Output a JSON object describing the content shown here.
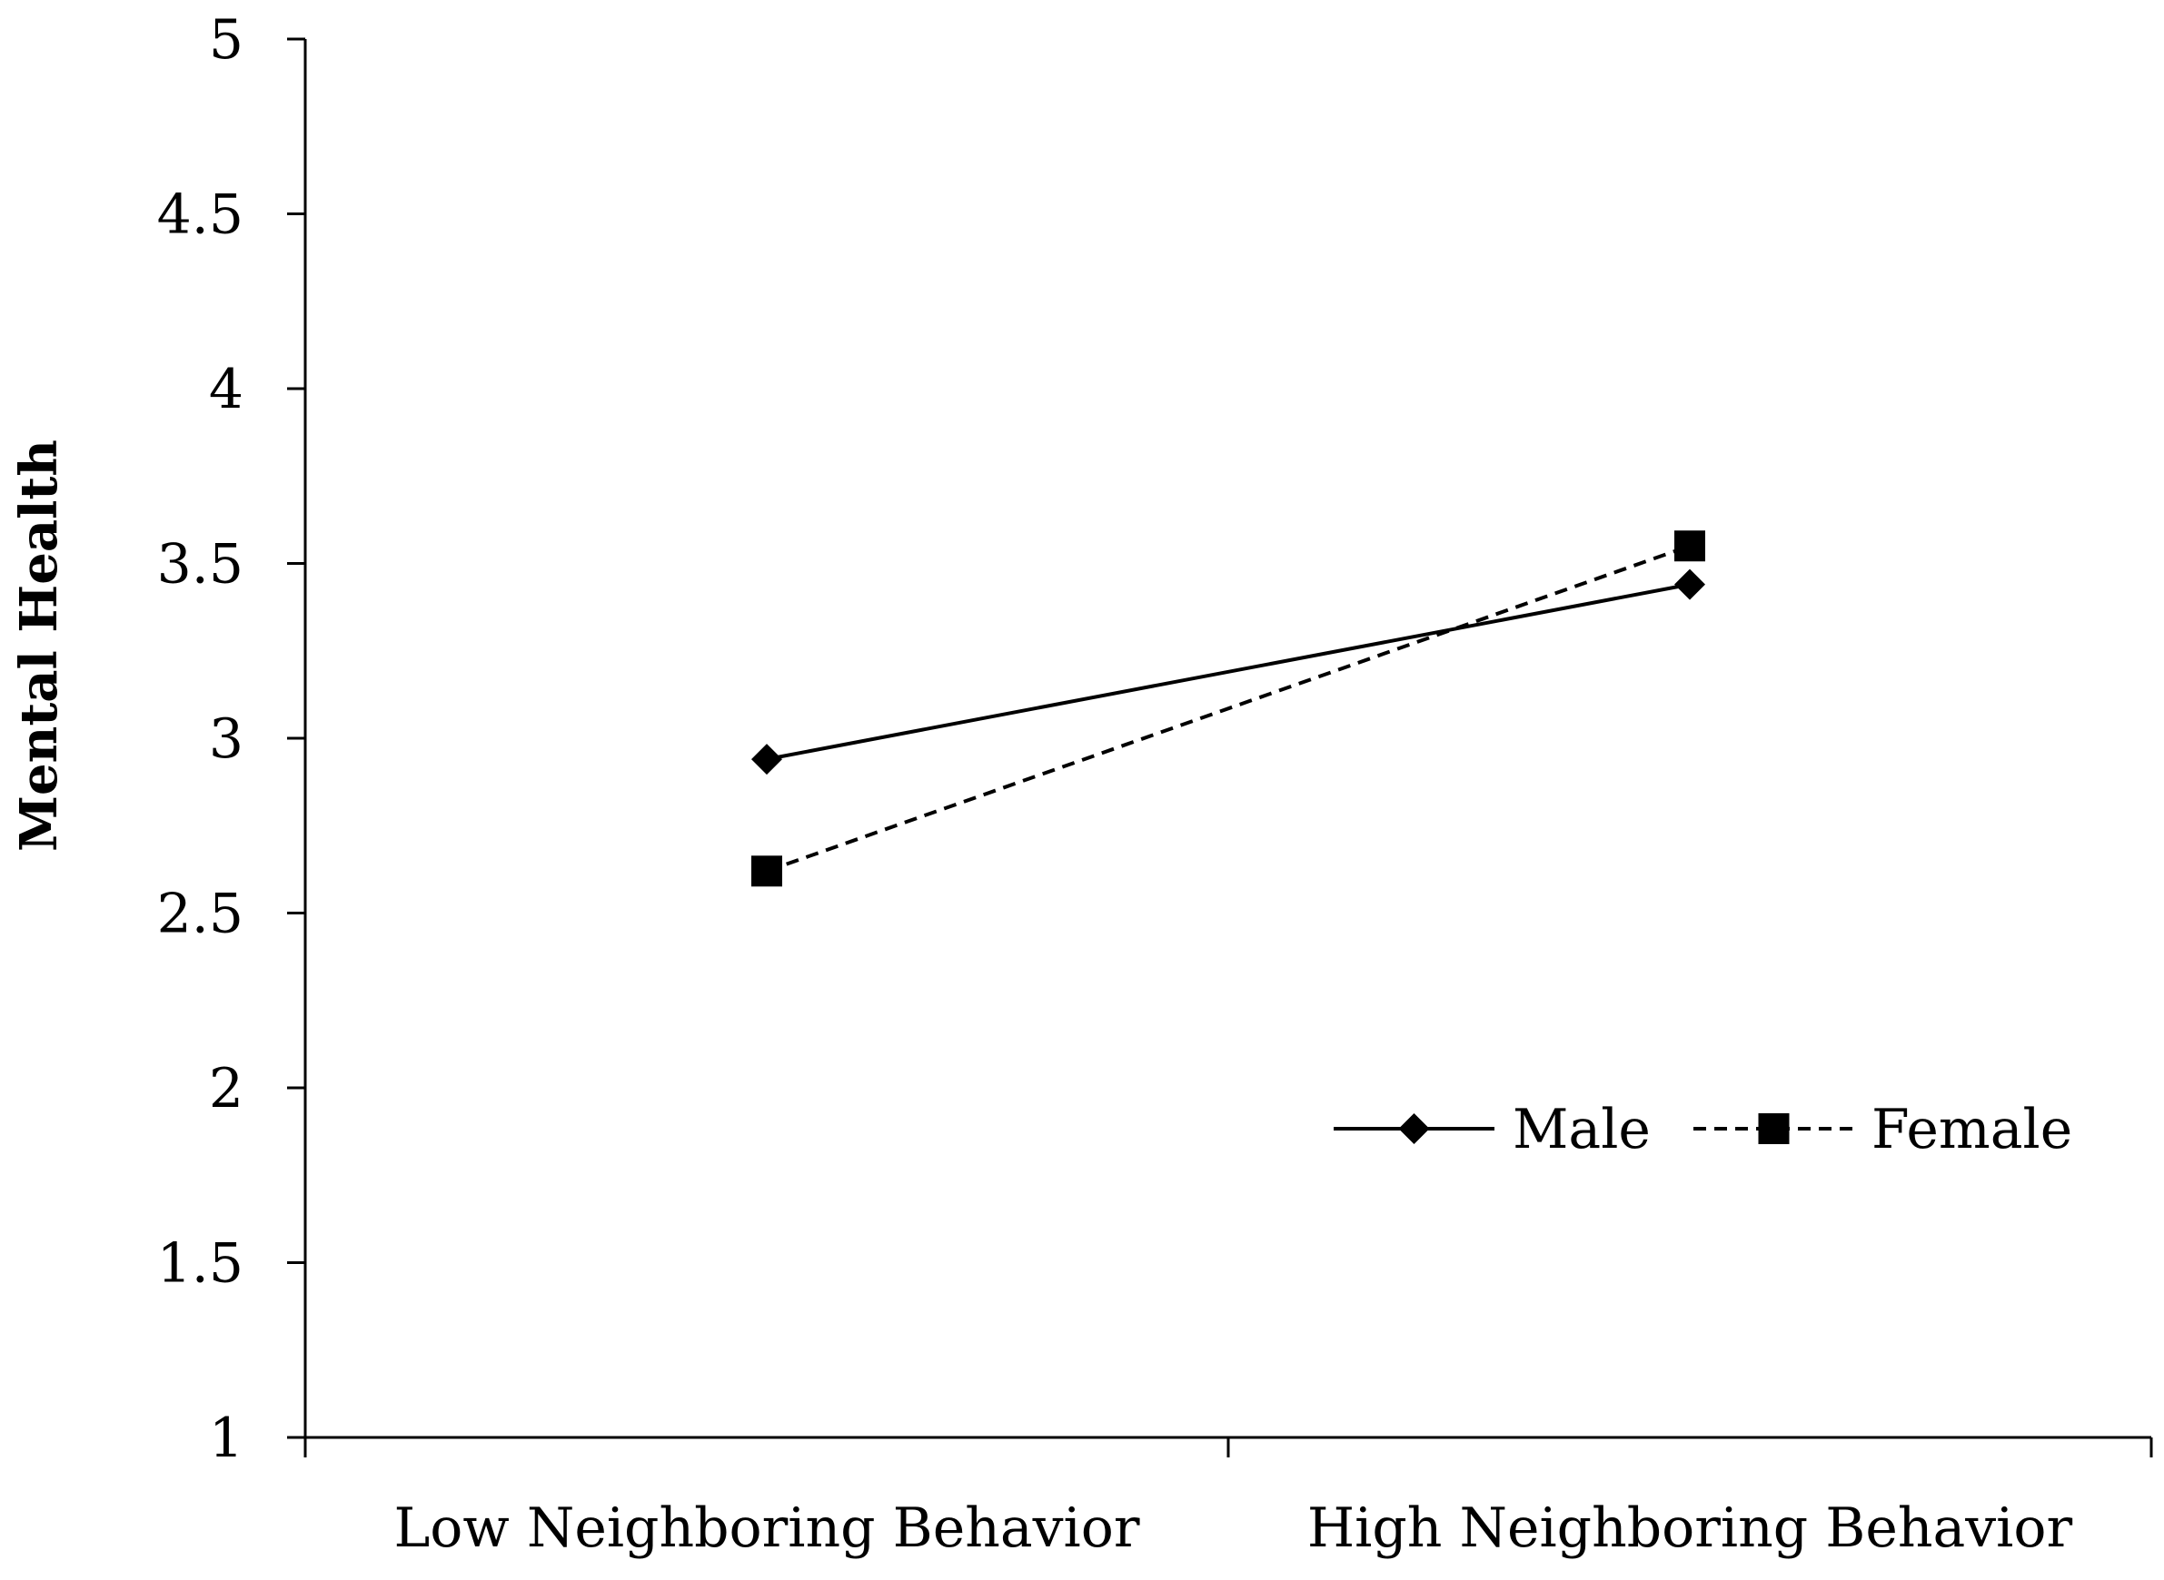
{
  "chart_data": {
    "type": "line",
    "title": "",
    "xlabel": "",
    "ylabel": "Mental Health",
    "ylim": [
      1,
      5
    ],
    "yticks": [
      1,
      1.5,
      2,
      2.5,
      3,
      3.5,
      4,
      4.5,
      5
    ],
    "ytick_labels": [
      "1",
      "1.5",
      "2",
      "2.5",
      "3",
      "3.5",
      "4",
      "4.5",
      "5"
    ],
    "categories": [
      "Low Neighboring Behavior",
      "High Neighboring Behavior"
    ],
    "grid": false,
    "legend_position": "lower-right",
    "series": [
      {
        "name": "Male",
        "values": [
          2.94,
          3.44
        ],
        "line_style": "solid",
        "marker": "diamond",
        "color": "#000000"
      },
      {
        "name": "Female",
        "values": [
          2.62,
          3.55
        ],
        "line_style": "dashed",
        "marker": "square",
        "color": "#000000"
      }
    ]
  }
}
